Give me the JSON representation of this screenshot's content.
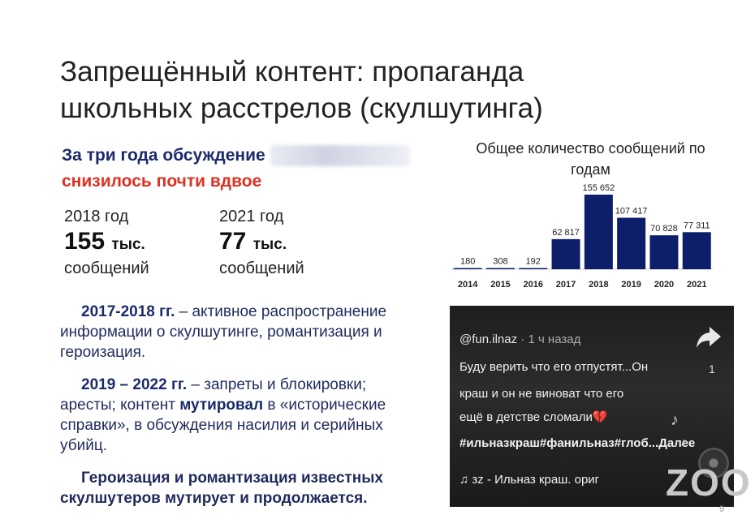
{
  "slide": {
    "title_line1": "Запрещённый контент: пропаганда",
    "title_line2": "школьных расстрелов (скулшутинга)",
    "subhead_line1": "За три года обсуждение",
    "subhead_line2": "снизилось почти вдвое",
    "stat1": {
      "year": "2018 год",
      "value": "155",
      "suffix": "тыс.",
      "unit": "сообщений"
    },
    "stat2": {
      "year": "2021 год",
      "value": "77",
      "suffix": "тыс.",
      "unit": "сообщений"
    },
    "p1_bold": "2017-2018 гг.",
    "p1_text": " – активное распространение информации о скулшутинге, романтизация и героизация.",
    "p2_bold": "2019 – 2022 гг.",
    "p2_text1": " – запреты и блокировки; аресты; контент ",
    "p2_bold2": "мутировал",
    "p2_text2": " в «исторические справки», в обсуждения насилия и серийных убийц.",
    "p3": "Героизация и романтизация известных скулшутеров мутирует и продолжается.",
    "page_number": "9",
    "zoom_watermark": "ZOO"
  },
  "video": {
    "username": "@fun.ilnaz",
    "time_ago": " · 1 ч назад",
    "line1": "Буду верить что его отпустят...Он",
    "line2": "краш и он не виноват что его",
    "line3": "ещё в детстве сломали💔",
    "tags": "#ильназкраш#фанильназ#глоб...Далее",
    "music": "зz - Ильназ краш.    ориг",
    "share_count": "1",
    "share_icon": "share-arrow-icon",
    "music_icon": "music-note-icon"
  },
  "chart_data": {
    "type": "bar",
    "title": "Общее количество сообщений по годам",
    "categories": [
      "2014",
      "2015",
      "2016",
      "2017",
      "2018",
      "2019",
      "2020",
      "2021"
    ],
    "values": [
      180,
      308,
      192,
      62817,
      155652,
      107417,
      70828,
      77311
    ],
    "labels": [
      "180",
      "308",
      "192",
      "62 817",
      "155 652",
      "107 417",
      "70 828",
      "77 311"
    ],
    "ylim": [
      0,
      155652
    ],
    "bar_color": "#0d1f6b",
    "grid": false,
    "legend": "none"
  }
}
